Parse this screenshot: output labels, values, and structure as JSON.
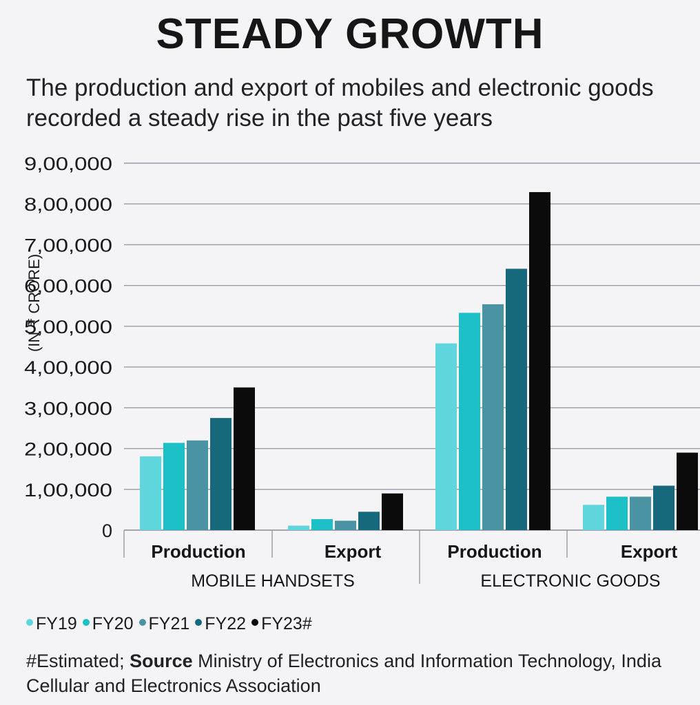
{
  "title": "STEADY GROWTH",
  "subtitle": "The production and export of mobiles and electronic goods recorded a steady rise in the past five years",
  "chart_data": {
    "type": "bar",
    "ylabel": "(IN ₹ CRORE)",
    "ylim": [
      0,
      900000
    ],
    "yticks": [
      {
        "value": 0,
        "label": "0"
      },
      {
        "value": 100000,
        "label": "1,00,000"
      },
      {
        "value": 200000,
        "label": "2,00,000"
      },
      {
        "value": 300000,
        "label": "3,00,000"
      },
      {
        "value": 400000,
        "label": "4,00,000"
      },
      {
        "value": 500000,
        "label": "5,00,000"
      },
      {
        "value": 600000,
        "label": "6,00,000"
      },
      {
        "value": 700000,
        "label": "7,00,000"
      },
      {
        "value": 800000,
        "label": "8,00,000"
      },
      {
        "value": 900000,
        "label": "9,00,000"
      }
    ],
    "groups": [
      {
        "name": "MOBILE HANDSETS",
        "categories": [
          "Production",
          "Export"
        ]
      },
      {
        "name": "ELECTRONIC GOODS",
        "categories": [
          "Production",
          "Export"
        ]
      }
    ],
    "categories": [
      "Production",
      "Export",
      "Production",
      "Export"
    ],
    "series": [
      {
        "name": "FY19",
        "color": "#5fd6de",
        "values": [
          181000,
          11000,
          458000,
          62000
        ]
      },
      {
        "name": "FY20",
        "color": "#1ec0c8",
        "values": [
          214000,
          27000,
          533000,
          82000
        ]
      },
      {
        "name": "FY21",
        "color": "#4a93a3",
        "values": [
          220000,
          23000,
          554000,
          82000
        ]
      },
      {
        "name": "FY22",
        "color": "#16697c",
        "values": [
          275000,
          45000,
          641000,
          109000
        ]
      },
      {
        "name": "FY23#",
        "color": "#0b0b0b",
        "values": [
          350000,
          90000,
          829000,
          190000
        ]
      }
    ]
  },
  "source": {
    "prefix": "#Estimated; ",
    "label": "Source",
    "text": " Ministry of Electronics and Information Technology, India Cellular and Electronics Association"
  }
}
